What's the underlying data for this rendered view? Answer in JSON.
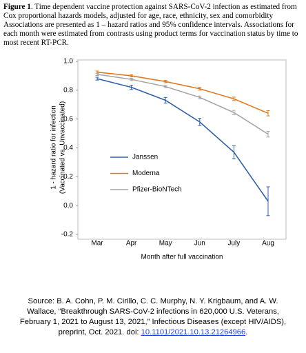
{
  "caption": {
    "label": "Figure 1",
    "text": ". Time dependent vaccine protection against SARS-CoV-2 infection as estimated from Cox proportional hazards models, adjusted for age, race, ethnicity, sex and comorbidity Associations are presented as 1 – hazard ratios and 95% confidence intervals. Associations for each month were estimated from contrasts using product terms for vaccination status by time to most recent RT-PCR."
  },
  "chart_data": {
    "type": "line",
    "xlabel": "Month after full vaccination",
    "ylabel": [
      "1 - hazard ratio for infection",
      "(Vaccinated vs. Unvaccinated)"
    ],
    "categories": [
      "Mar",
      "Apr",
      "May",
      "Jun",
      "July",
      "Aug"
    ],
    "series": [
      {
        "name": "Janssen",
        "color": "#2f5fa8",
        "values": [
          0.88,
          0.82,
          0.73,
          0.58,
          0.37,
          0.03
        ],
        "errors": [
          0.01,
          0.015,
          0.02,
          0.025,
          0.045,
          0.1
        ]
      },
      {
        "name": "Moderna",
        "color": "#e07b22",
        "values": [
          0.925,
          0.9,
          0.86,
          0.81,
          0.74,
          0.64
        ],
        "errors": [
          0.008,
          0.008,
          0.008,
          0.01,
          0.012,
          0.018
        ]
      },
      {
        "name": "Pfizer-BioNTech",
        "color": "#a6a6a6",
        "values": [
          0.91,
          0.875,
          0.825,
          0.75,
          0.645,
          0.495
        ],
        "errors": [
          0.008,
          0.008,
          0.008,
          0.01,
          0.015,
          0.02
        ]
      }
    ],
    "ylim": [
      -0.2,
      1
    ],
    "yticks": [
      {
        "value": 1,
        "label": "1.0"
      },
      0.8,
      0.6,
      0.4,
      0.2,
      {
        "value": 0,
        "label": "0.0"
      },
      -0.2
    ],
    "legend": "left"
  },
  "source": {
    "text": "Source: B. A. Cohn, P. M. Cirillo, C. C. Murphy, N. Y. Krigbaum, and A. W. Wallace, “Breakthrough SARS-CoV-2 infections in 620,000 U.S. Veterans, February 1, 2021 to August 13, 2021,” Infectious Diseases (except HIV/AIDS), preprint, Oct. 2021. doi: ",
    "doi": "10.1101/2021.10.13.21264966",
    "end": "."
  }
}
